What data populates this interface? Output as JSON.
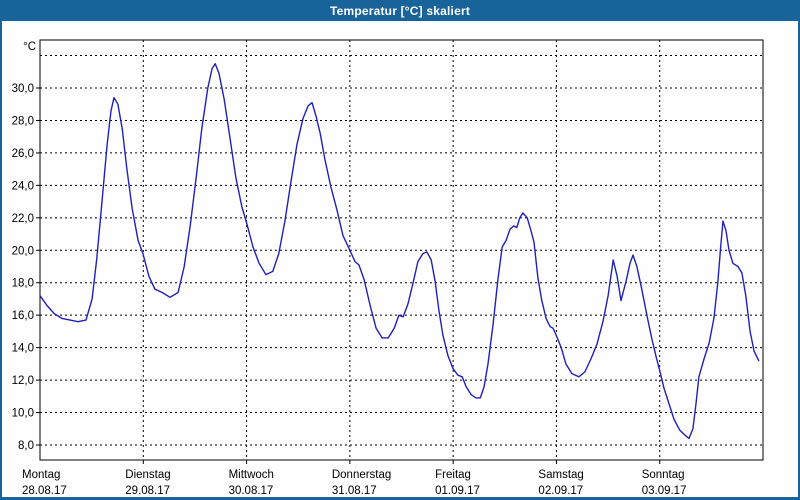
{
  "window": {
    "title": "Temperatur [°C] skaliert"
  },
  "colors": {
    "titlebar_blue": "#19639B",
    "line_blue": "#2020BE",
    "plot_border": "#000000",
    "background": "#FDFEFD"
  },
  "chart_data": {
    "type": "line",
    "title": "Temperatur [°C] skaliert",
    "grid": "dashed",
    "legend": "none",
    "y_axis": {
      "unit_label": "°C",
      "min": 8,
      "max": 32,
      "tick_step": 2,
      "tick_labels": [
        "8,0",
        "10,0",
        "12,0",
        "14,0",
        "16,0",
        "18,0",
        "20,0",
        "22,0",
        "24,0",
        "26,0",
        "28,0",
        "30,0"
      ],
      "unlabeled_top_gridline": 32
    },
    "x_axis": {
      "total_hours": 168,
      "days": [
        {
          "name": "Montag",
          "date": "28.08.17"
        },
        {
          "name": "Dienstag",
          "date": "29.08.17"
        },
        {
          "name": "Mittwoch",
          "date": "30.08.17"
        },
        {
          "name": "Donnerstag",
          "date": "31.08.17"
        },
        {
          "name": "Freitag",
          "date": "01.09.17"
        },
        {
          "name": "Samstag",
          "date": "02.09.17"
        },
        {
          "name": "Sonntag",
          "date": "03.09.17"
        }
      ]
    },
    "series": [
      {
        "name": "Temperatur",
        "color": "#2020BE",
        "points_hours_temp": [
          [
            0,
            17.2
          ],
          [
            1.6,
            16.6
          ],
          [
            3.3,
            16.1
          ],
          [
            5.1,
            15.8
          ],
          [
            7,
            15.7
          ],
          [
            8.8,
            15.6
          ],
          [
            10.7,
            15.7
          ],
          [
            12.1,
            17.0
          ],
          [
            13.2,
            19.5
          ],
          [
            14.4,
            23.0
          ],
          [
            15.6,
            26.5
          ],
          [
            16.5,
            28.6
          ],
          [
            17.2,
            29.4
          ],
          [
            18.1,
            29.0
          ],
          [
            19.1,
            27.5
          ],
          [
            20.2,
            25.0
          ],
          [
            21.4,
            22.6
          ],
          [
            22.8,
            20.6
          ],
          [
            23.9,
            19.8
          ],
          [
            25.3,
            18.4
          ],
          [
            26.7,
            17.6
          ],
          [
            28.4,
            17.4
          ],
          [
            30.2,
            17.1
          ],
          [
            32.1,
            17.4
          ],
          [
            33.5,
            19.0
          ],
          [
            34.9,
            21.5
          ],
          [
            36.3,
            24.5
          ],
          [
            37.6,
            27.5
          ],
          [
            39,
            30.0
          ],
          [
            40,
            31.2
          ],
          [
            40.7,
            31.5
          ],
          [
            41.6,
            30.9
          ],
          [
            42.8,
            29.3
          ],
          [
            44.1,
            27.0
          ],
          [
            45.5,
            24.5
          ],
          [
            46.9,
            22.7
          ],
          [
            48.1,
            21.6
          ],
          [
            49.5,
            20.2
          ],
          [
            50.9,
            19.2
          ],
          [
            52.5,
            18.5
          ],
          [
            54.1,
            18.7
          ],
          [
            55.5,
            19.8
          ],
          [
            56.9,
            21.8
          ],
          [
            58.3,
            24.2
          ],
          [
            59.7,
            26.5
          ],
          [
            61.1,
            28.1
          ],
          [
            62.3,
            28.9
          ],
          [
            63.2,
            29.1
          ],
          [
            64.1,
            28.3
          ],
          [
            65.1,
            27.2
          ],
          [
            66.2,
            25.6
          ],
          [
            67.6,
            23.9
          ],
          [
            69,
            22.5
          ],
          [
            70.4,
            20.9
          ],
          [
            72,
            20.0
          ],
          [
            73.2,
            19.3
          ],
          [
            74.1,
            19.1
          ],
          [
            75.3,
            18.2
          ],
          [
            76.7,
            16.6
          ],
          [
            78.1,
            15.2
          ],
          [
            79.5,
            14.6
          ],
          [
            80.9,
            14.6
          ],
          [
            82.3,
            15.2
          ],
          [
            83.4,
            16.0
          ],
          [
            84.4,
            15.9
          ],
          [
            85.5,
            16.7
          ],
          [
            86.7,
            18.0
          ],
          [
            87.8,
            19.3
          ],
          [
            89,
            19.8
          ],
          [
            89.9,
            19.9
          ],
          [
            90.9,
            19.4
          ],
          [
            91.8,
            18.1
          ],
          [
            92.7,
            16.3
          ],
          [
            93.6,
            14.8
          ],
          [
            94.8,
            13.5
          ],
          [
            96,
            12.7
          ],
          [
            97.1,
            12.3
          ],
          [
            98.1,
            12.2
          ],
          [
            99,
            11.6
          ],
          [
            100.2,
            11.1
          ],
          [
            101.3,
            10.9
          ],
          [
            102.3,
            10.9
          ],
          [
            103.2,
            11.6
          ],
          [
            104.1,
            13.0
          ],
          [
            105.3,
            15.5
          ],
          [
            106.4,
            18.2
          ],
          [
            107.4,
            20.2
          ],
          [
            108.3,
            20.6
          ],
          [
            109.2,
            21.3
          ],
          [
            110.1,
            21.5
          ],
          [
            110.8,
            21.4
          ],
          [
            111.5,
            22.0
          ],
          [
            112.2,
            22.3
          ],
          [
            113.2,
            22.0
          ],
          [
            114.1,
            21.2
          ],
          [
            114.8,
            20.5
          ],
          [
            115.7,
            18.3
          ],
          [
            116.6,
            16.9
          ],
          [
            117.6,
            15.8
          ],
          [
            118.5,
            15.3
          ],
          [
            119.2,
            15.2
          ],
          [
            119.9,
            14.8
          ],
          [
            121.1,
            14.0
          ],
          [
            122.2,
            13.0
          ],
          [
            123.6,
            12.4
          ],
          [
            125.2,
            12.2
          ],
          [
            126.6,
            12.5
          ],
          [
            128,
            13.3
          ],
          [
            129.4,
            14.2
          ],
          [
            130.8,
            15.6
          ],
          [
            132,
            17.2
          ],
          [
            133.2,
            19.4
          ],
          [
            134.1,
            18.4
          ],
          [
            135,
            16.9
          ],
          [
            136.2,
            18.1
          ],
          [
            137.1,
            19.2
          ],
          [
            137.8,
            19.7
          ],
          [
            138.7,
            19.0
          ],
          [
            139.9,
            17.5
          ],
          [
            141.1,
            15.9
          ],
          [
            142.2,
            14.5
          ],
          [
            143.2,
            13.4
          ],
          [
            144.1,
            12.5
          ],
          [
            145,
            11.5
          ],
          [
            146.2,
            10.5
          ],
          [
            147.3,
            9.6
          ],
          [
            148.7,
            8.9
          ],
          [
            149.9,
            8.6
          ],
          [
            150.8,
            8.4
          ],
          [
            151.7,
            9.0
          ],
          [
            152.4,
            10.5
          ],
          [
            153.1,
            12.2
          ],
          [
            154.3,
            13.3
          ],
          [
            155.5,
            14.3
          ],
          [
            156.6,
            15.8
          ],
          [
            157.5,
            18.0
          ],
          [
            158.2,
            20.3
          ],
          [
            158.7,
            21.8
          ],
          [
            159.4,
            21.2
          ],
          [
            160.1,
            20.0
          ],
          [
            161,
            19.2
          ],
          [
            162.2,
            19.0
          ],
          [
            163.1,
            18.6
          ],
          [
            164,
            17.2
          ],
          [
            165,
            15.0
          ],
          [
            165.9,
            13.8
          ],
          [
            167,
            13.2
          ]
        ]
      }
    ]
  }
}
